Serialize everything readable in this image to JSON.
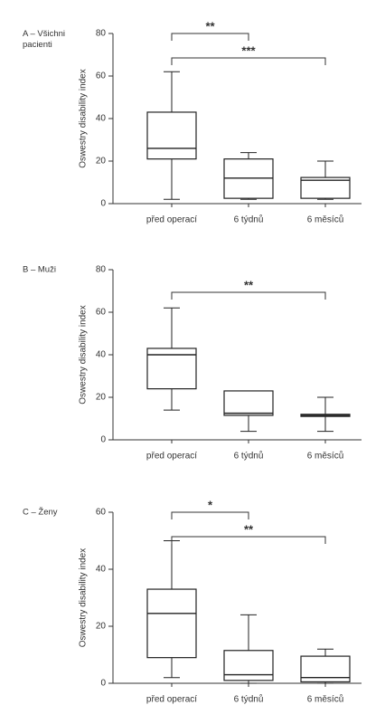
{
  "chart_data": [
    {
      "type": "box",
      "title": "A – Všichni pacienti",
      "y_label": "Oswestry disability index",
      "categories": [
        "před operací",
        "6 týdnů",
        "6 měsíců"
      ],
      "min": [
        2,
        2,
        2
      ],
      "q1": [
        21,
        2.5,
        2.5
      ],
      "median": [
        26,
        12,
        11
      ],
      "q3": [
        43,
        21,
        12.3
      ],
      "max": [
        62,
        24,
        20
      ],
      "ylim": [
        0,
        80
      ],
      "yticks": [
        0,
        20,
        40,
        60,
        80
      ],
      "color": "#222222",
      "brackets": [
        {
          "from": 0,
          "to": 1,
          "label": "**"
        },
        {
          "from": 0,
          "to": 2,
          "label": "***"
        }
      ]
    },
    {
      "type": "box",
      "title": "B – Muži",
      "y_label": "Oswestry disability index",
      "categories": [
        "před operací",
        "6 týdnů",
        "6 měsíců"
      ],
      "min": [
        14,
        4,
        4
      ],
      "q1": [
        24,
        11.5,
        11
      ],
      "median": [
        40,
        12.5,
        11.5
      ],
      "q3": [
        43,
        23,
        12
      ],
      "max": [
        62,
        23,
        20
      ],
      "ylim": [
        0,
        80
      ],
      "yticks": [
        0,
        20,
        40,
        60,
        80
      ],
      "color": "#222222",
      "brackets": [
        {
          "from": 0,
          "to": 2,
          "label": "**"
        }
      ]
    },
    {
      "type": "box",
      "title": "C – Ženy",
      "y_label": "Oswestry disability index",
      "categories": [
        "před operací",
        "6 týdnů",
        "6 měsíců"
      ],
      "min": [
        2,
        0,
        0
      ],
      "q1": [
        9,
        1,
        0.5
      ],
      "median": [
        24.5,
        3,
        2
      ],
      "q3": [
        33,
        11.5,
        9.5
      ],
      "max": [
        50,
        24,
        12
      ],
      "ylim": [
        0,
        60
      ],
      "yticks": [
        0,
        20,
        40,
        60
      ],
      "color": "#222222",
      "brackets": [
        {
          "from": 0,
          "to": 1,
          "label": "*"
        },
        {
          "from": 0,
          "to": 2,
          "label": "**"
        }
      ]
    }
  ]
}
